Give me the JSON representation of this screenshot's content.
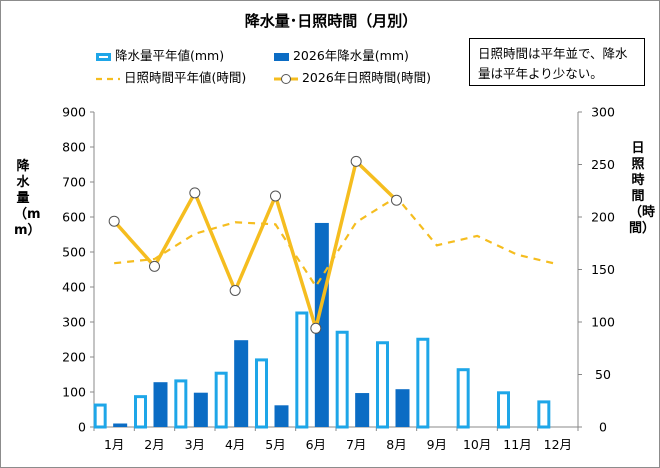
{
  "chart_data": {
    "type": "bar",
    "title": "降水量･日照時間（月別）",
    "categories": [
      "1月",
      "2月",
      "3月",
      "4月",
      "5月",
      "6月",
      "7月",
      "8月",
      "9月",
      "10月",
      "11月",
      "12月"
    ],
    "ylabel": "降水量（mm）",
    "y2label": "日照時間（時間）",
    "ylim": [
      0,
      900
    ],
    "y2lim": [
      0,
      300
    ],
    "yticks": [
      0,
      100,
      200,
      300,
      400,
      500,
      600,
      700,
      800,
      900
    ],
    "y2ticks": [
      0,
      50,
      100,
      150,
      200,
      250,
      300
    ],
    "grid": false,
    "series": [
      {
        "name": "降水量平年値(mm)",
        "kind": "bar",
        "style": "outline",
        "axis": "left",
        "color": "#1ea6e8",
        "values": [
          67,
          91,
          136,
          158,
          196,
          330,
          275,
          245,
          255,
          168,
          102,
          76
        ]
      },
      {
        "name": "2026年降水量(mm)",
        "kind": "bar",
        "style": "filled",
        "axis": "left",
        "color": "#0b6cc4",
        "values": [
          10,
          128,
          98,
          248,
          62,
          583,
          97,
          108,
          null,
          null,
          null,
          null
        ]
      },
      {
        "name": "日照時間平年値(時間)",
        "kind": "line",
        "style": "dashed",
        "axis": "right",
        "color": "#f5bd1f",
        "values": [
          156,
          160,
          184,
          195,
          193,
          134,
          195,
          219,
          173,
          182,
          164,
          155
        ]
      },
      {
        "name": "2026年日照時間(時間)",
        "kind": "line",
        "style": "solid-markers",
        "axis": "right",
        "color": "#f5bd1f",
        "values": [
          196,
          153,
          223,
          130,
          220,
          94,
          253,
          216,
          null,
          null,
          null,
          null
        ]
      }
    ],
    "annotation": "日照時間は平年並で、降水量は平年より少ない。"
  }
}
